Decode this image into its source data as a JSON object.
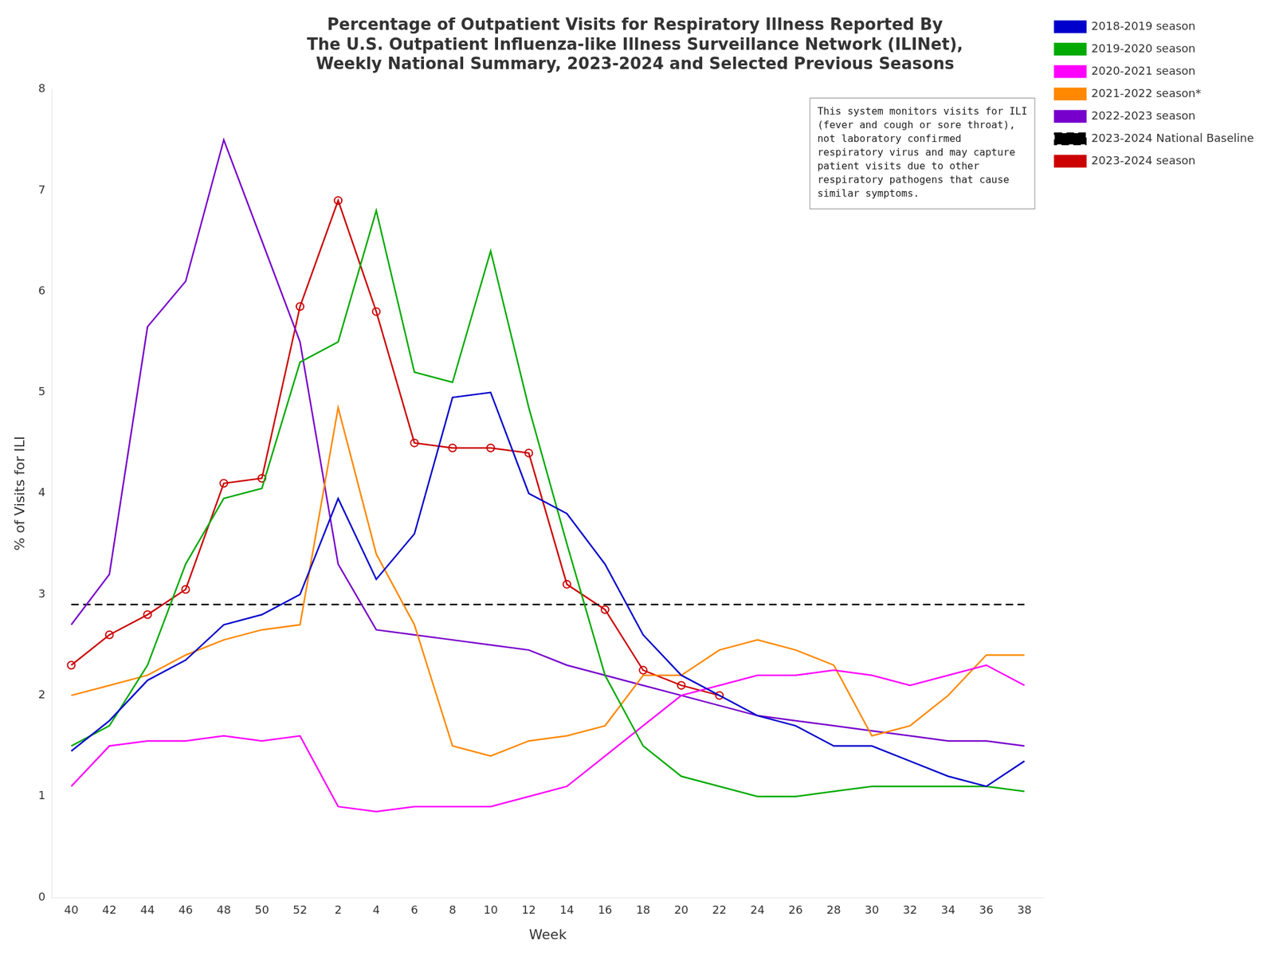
{
  "chart_data": {
    "type": "line",
    "title": "Percentage of Outpatient Visits for Respiratory Illness Reported By\nThe U.S. Outpatient Influenza-like Illness Surveillance Network (ILINet),\nWeekly National Summary, 2023-2024 and Selected Previous Seasons",
    "xlabel": "Week",
    "ylabel": "% of Visits for ILI",
    "annotation": "This system monitors visits for ILI\n(fever and cough or sore throat),\nnot laboratory confirmed\nrespiratory virus and may capture\npatient visits due to other\nrespiratory pathogens that cause\nsimilar symptoms.",
    "categories": [
      "40",
      "42",
      "44",
      "46",
      "48",
      "50",
      "52",
      "2",
      "4",
      "6",
      "8",
      "10",
      "12",
      "14",
      "16",
      "18",
      "20",
      "22",
      "24",
      "26",
      "28",
      "30",
      "32",
      "34",
      "36",
      "38"
    ],
    "ylim": [
      0,
      8
    ],
    "yticks": [
      0,
      1,
      2,
      3,
      4,
      5,
      6,
      7,
      8
    ],
    "grid": false,
    "legend": "upper right",
    "series": [
      {
        "name": "2018-2019 season",
        "color": "#0000cc",
        "values": [
          1.45,
          1.75,
          2.15,
          2.35,
          2.7,
          2.8,
          3.0,
          3.95,
          3.15,
          3.6,
          4.95,
          5.0,
          4.0,
          3.8,
          3.3,
          2.6,
          2.2,
          2.0,
          1.8,
          1.7,
          1.5,
          1.5,
          1.35,
          1.2,
          1.1,
          1.35
        ]
      },
      {
        "name": "2019-2020 season",
        "color": "#00aa00",
        "values": [
          1.5,
          1.7,
          2.3,
          3.3,
          3.95,
          4.05,
          5.3,
          5.5,
          6.8,
          5.2,
          5.1,
          6.4,
          4.85,
          3.5,
          2.2,
          1.5,
          1.2,
          1.1,
          1.0,
          1.0,
          1.05,
          1.1,
          1.1,
          1.1,
          1.1,
          1.05
        ]
      },
      {
        "name": "2020-2021 season",
        "color": "#ff00ff",
        "values": [
          1.1,
          1.5,
          1.55,
          1.55,
          1.6,
          1.55,
          1.6,
          0.9,
          0.85,
          0.9,
          0.9,
          0.9,
          1.0,
          1.1,
          1.4,
          1.7,
          2.0,
          2.1,
          2.2,
          2.2,
          2.25,
          2.2,
          2.1,
          2.2,
          2.3,
          2.1
        ]
      },
      {
        "name": "2021-2022 season*",
        "color": "#ff8800",
        "values": [
          2.0,
          2.1,
          2.2,
          2.4,
          2.55,
          2.65,
          2.7,
          4.85,
          3.4,
          2.7,
          1.5,
          1.4,
          1.55,
          1.6,
          1.7,
          2.2,
          2.2,
          2.45,
          2.55,
          2.45,
          2.3,
          1.6,
          1.7,
          2.0,
          2.4,
          2.4
        ]
      },
      {
        "name": "2022-2023 season",
        "color": "#7700cc",
        "values": [
          2.7,
          3.2,
          5.65,
          6.1,
          7.5,
          6.5,
          5.5,
          3.3,
          2.65,
          2.6,
          2.55,
          2.5,
          2.45,
          2.3,
          2.2,
          2.1,
          2.0,
          1.9,
          1.8,
          1.75,
          1.7,
          1.65,
          1.6,
          1.55,
          1.55,
          1.5
        ]
      },
      {
        "name": "2023-2024 National Baseline",
        "color": "#000000",
        "line_style": "dashed",
        "values": [
          2.9,
          2.9,
          2.9,
          2.9,
          2.9,
          2.9,
          2.9,
          2.9,
          2.9,
          2.9,
          2.9,
          2.9,
          2.9,
          2.9,
          2.9,
          2.9,
          2.9,
          2.9,
          2.9,
          2.9,
          2.9,
          2.9,
          2.9,
          2.9,
          2.9,
          2.9
        ]
      },
      {
        "name": "2023-2024 season",
        "color": "#cc0000",
        "marker": "circle",
        "values": [
          2.3,
          2.6,
          2.8,
          3.05,
          4.1,
          4.15,
          5.85,
          6.9,
          5.8,
          4.5,
          4.45,
          4.45,
          4.4,
          3.1,
          2.85,
          2.25,
          2.1,
          2.0,
          null,
          null,
          null,
          null,
          null,
          null,
          null,
          null
        ]
      }
    ]
  }
}
